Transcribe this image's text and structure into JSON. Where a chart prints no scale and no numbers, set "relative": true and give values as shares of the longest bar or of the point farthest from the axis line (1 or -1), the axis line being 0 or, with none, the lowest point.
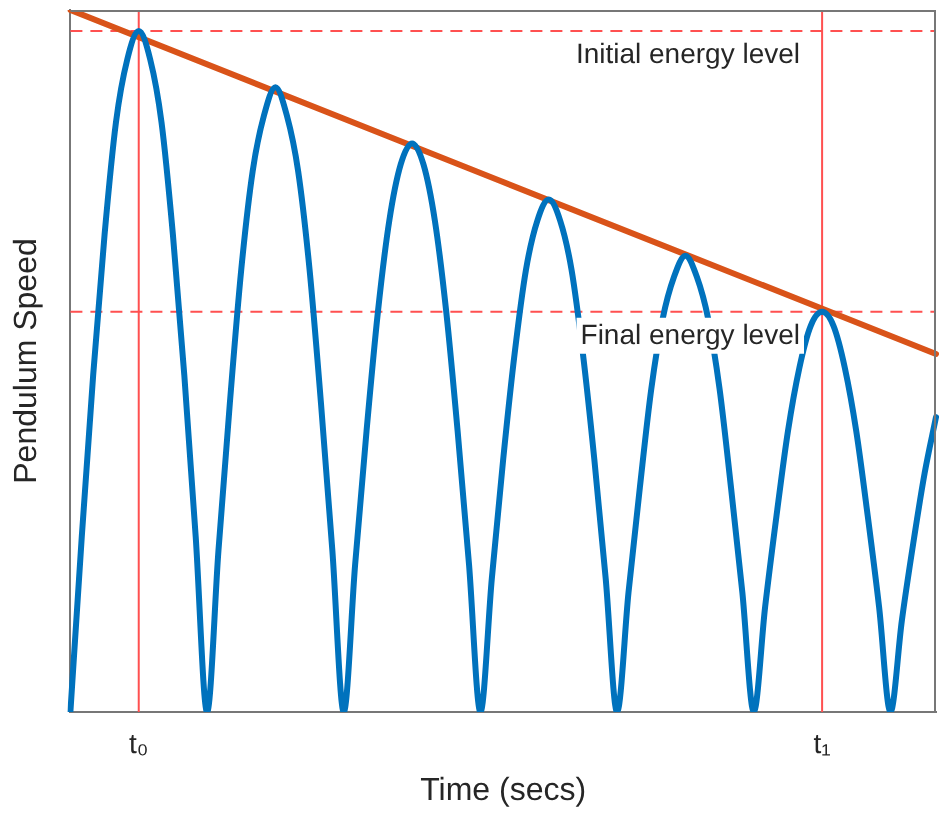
{
  "chart_data": {
    "type": "line",
    "relative": true,
    "xlabel": "Time (secs)",
    "ylabel": "Pendulum Speed",
    "categories": [
      null,
      null,
      null,
      null,
      null,
      null,
      "t₀",
      null,
      null,
      null,
      null,
      null,
      null,
      null,
      null,
      null,
      null,
      null,
      null,
      null,
      null,
      null,
      null,
      null,
      null,
      null,
      null,
      null,
      null,
      null,
      null,
      null,
      null,
      null,
      null,
      null,
      null,
      null,
      null,
      null,
      null,
      null,
      null,
      null,
      null,
      null,
      null,
      null,
      null,
      null,
      null,
      null,
      null,
      null,
      null,
      null,
      null,
      null,
      null,
      null,
      null,
      null,
      null,
      null,
      null,
      null,
      "t₁",
      null,
      null,
      null,
      null,
      null,
      null,
      null,
      null,
      null,
      null
    ],
    "series": [
      {
        "color": "#0072bd",
        "values": [
          0,
          0.25,
          0.48,
          0.68,
          0.84,
          0.93,
          0.97,
          0.93,
          0.84,
          0.68,
          0.48,
          0.25,
          0,
          0.23,
          0.44,
          0.63,
          0.77,
          0.85,
          0.89,
          0.85,
          0.77,
          0.63,
          0.44,
          0.23,
          0,
          0.21,
          0.4,
          0.57,
          0.7,
          0.78,
          0.81,
          0.78,
          0.7,
          0.57,
          0.4,
          0.21,
          0,
          0.19,
          0.36,
          0.51,
          0.63,
          0.7,
          0.73,
          0.7,
          0.63,
          0.51,
          0.36,
          0.19,
          0,
          0.17,
          0.32,
          0.46,
          0.56,
          0.62,
          0.65,
          0.62,
          0.56,
          0.46,
          0.32,
          0.17,
          0,
          0.15,
          0.28,
          0.4,
          0.49,
          0.55,
          0.57,
          0.55,
          0.49,
          0.4,
          0.28,
          0.15,
          0,
          0.13,
          0.24,
          0.34,
          0.42
        ]
      },
      {
        "color": "#d95319",
        "values": [
          1,
          null,
          null,
          null,
          null,
          null,
          null,
          null,
          null,
          null,
          null,
          null,
          null,
          null,
          null,
          null,
          null,
          null,
          null,
          null,
          null,
          null,
          null,
          null,
          null,
          null,
          null,
          null,
          null,
          null,
          null,
          null,
          null,
          null,
          null,
          null,
          null,
          null,
          null,
          null,
          null,
          null,
          null,
          null,
          null,
          null,
          null,
          null,
          null,
          null,
          null,
          null,
          null,
          null,
          null,
          null,
          null,
          null,
          null,
          null,
          null,
          null,
          null,
          null,
          null,
          null,
          null,
          null,
          null,
          null,
          null,
          null,
          null,
          null,
          null,
          null,
          0.51
        ]
      }
    ],
    "ref_lines": [
      {
        "axis": "y",
        "value": 0.97,
        "label": "Initial energy level",
        "color": "#ff5050",
        "line_style": "dashed"
      },
      {
        "axis": "y",
        "value": 0.57,
        "label": "Final energy level",
        "color": "#ff5050",
        "line_style": "dashed"
      },
      {
        "axis": "x",
        "value": "t₀",
        "color": "#ff5050",
        "line_style": "solid"
      },
      {
        "axis": "x",
        "value": "t₁",
        "color": "#ff5050",
        "line_style": "solid"
      }
    ],
    "legend": false,
    "grid": false,
    "marker": "none",
    "line_style": "solid"
  }
}
